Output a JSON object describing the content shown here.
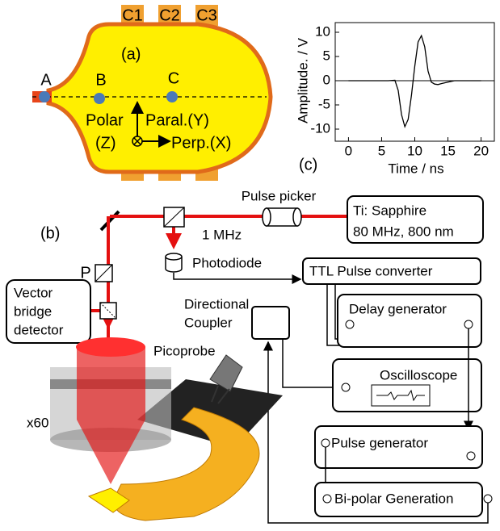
{
  "panel_a": {
    "label": "(a)",
    "contacts": [
      "C1",
      "C2",
      "C3"
    ],
    "points": [
      "A",
      "B",
      "C"
    ],
    "axes": {
      "polar": "Polar",
      "polar_axis": "(Z)",
      "paral": "Paral.(Y)",
      "perp": "Perp.(X)"
    }
  },
  "panel_b": {
    "label": "(b)",
    "pulse_picker": "Pulse picker",
    "laser": [
      "Ti: Sapphire",
      "80 MHz, 800 nm"
    ],
    "rate": "1 MHz",
    "photodiode": "Photodiode",
    "ttl": "TTL Pulse  converter",
    "polarizer": "P",
    "detector": [
      "Vector",
      "bridge",
      "detector"
    ],
    "coupler": [
      "Directional",
      "Coupler"
    ],
    "delay": "Delay generator",
    "picoprobe": "Picoprobe",
    "oscilloscope": "Oscilloscope",
    "objective": "x60",
    "pulse_generator": "Pulse generator",
    "bipolar": "Bi-polar Generation"
  },
  "chart_data": {
    "type": "line",
    "label": "(c)",
    "x_label": "Time / ns",
    "y_label": "Amplitude. / V",
    "x": [
      0,
      2,
      4,
      6,
      7,
      7.5,
      8,
      8.5,
      9,
      9.5,
      10,
      10.5,
      11,
      11.5,
      12,
      12.5,
      13,
      13.5,
      14,
      15,
      16,
      18,
      20
    ],
    "series": [
      {
        "color": "#000000",
        "values": [
          0,
          0,
          0,
          0,
          0.1,
          -2,
          -7,
          -9.5,
          -8,
          -3,
          3,
          8,
          9.3,
          7,
          2,
          -0.3,
          -0.7,
          -0.8,
          -0.6,
          -0.3,
          0,
          0,
          0
        ]
      }
    ],
    "xlim": [
      -2,
      22
    ],
    "ylim": [
      -12.5,
      12
    ],
    "xticks": [
      0,
      5,
      10,
      15,
      20
    ],
    "yticks": [
      -10,
      -5,
      0,
      5,
      10
    ]
  }
}
